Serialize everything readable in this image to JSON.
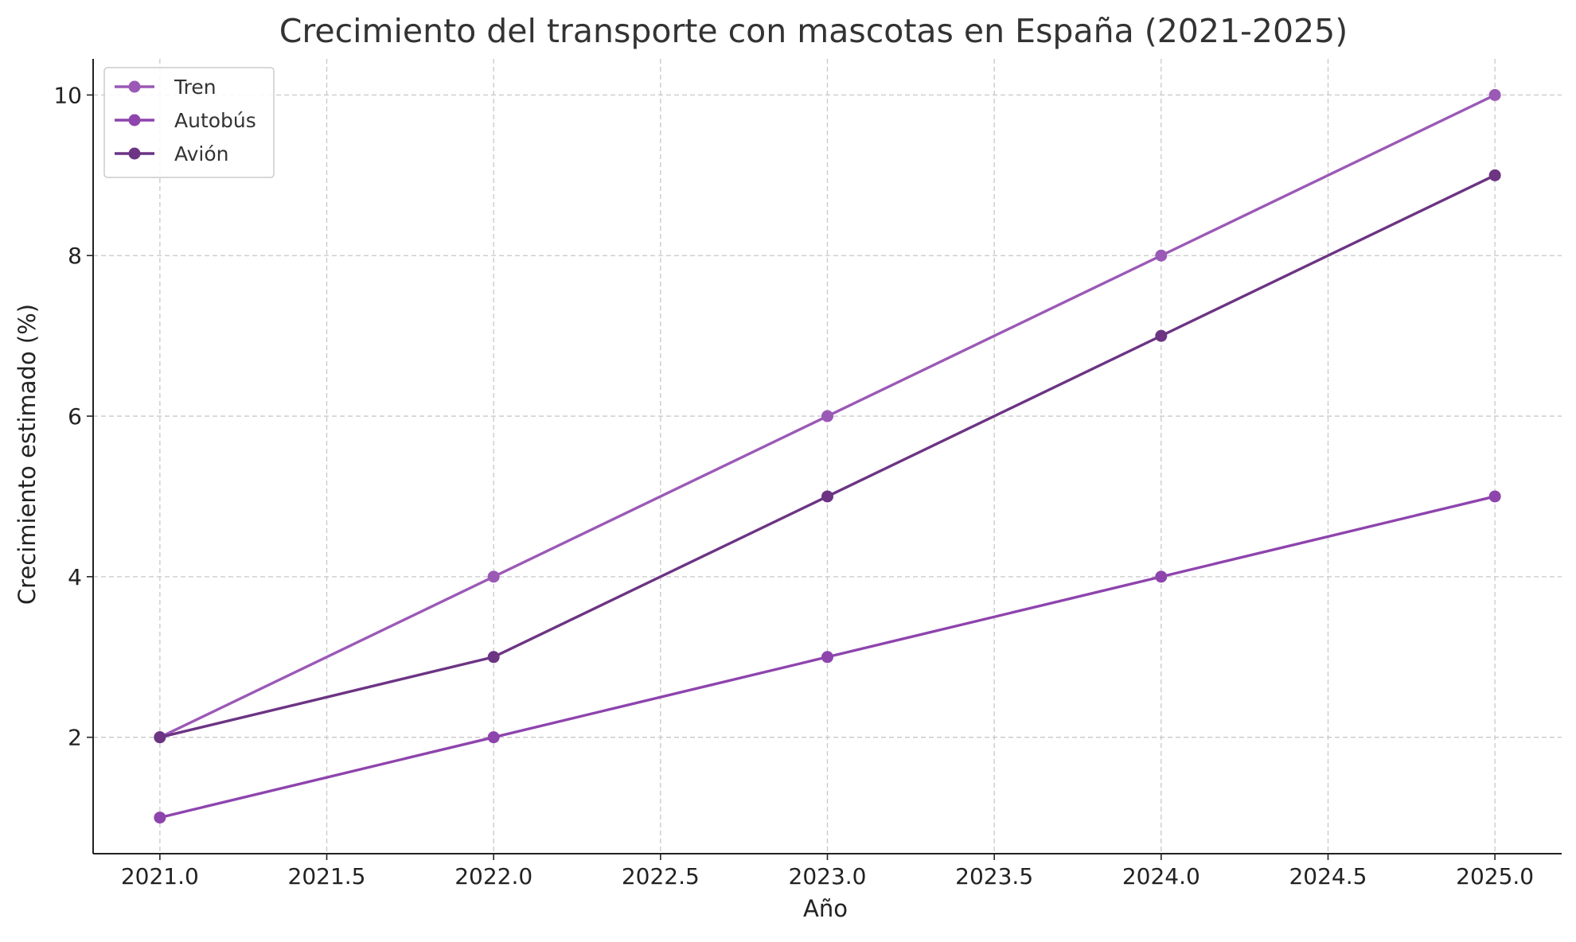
{
  "chart_data": {
    "type": "line",
    "title": "Crecimiento del transporte con mascotas en España (2021-2025)",
    "xlabel": "Año",
    "ylabel": "Crecimiento estimado (%)",
    "x": [
      2021,
      2022,
      2023,
      2024,
      2025
    ],
    "xlim": [
      2020.8,
      2025.2
    ],
    "ylim": [
      0.55,
      10.45
    ],
    "xticks": [
      "2021.0",
      "2021.5",
      "2022.0",
      "2022.5",
      "2023.0",
      "2023.5",
      "2024.0",
      "2024.5",
      "2025.0"
    ],
    "xtick_values": [
      2021.0,
      2021.5,
      2022.0,
      2022.5,
      2023.0,
      2023.5,
      2024.0,
      2024.5,
      2025.0
    ],
    "yticks": [
      "2",
      "4",
      "6",
      "8",
      "10"
    ],
    "ytick_values": [
      2,
      4,
      6,
      8,
      10
    ],
    "grid": true,
    "legend_position": "top-left",
    "series": [
      {
        "name": "Tren",
        "values": [
          2,
          4,
          6,
          8,
          10
        ],
        "color": "#9b59b6"
      },
      {
        "name": "Autobús",
        "values": [
          1,
          2,
          3,
          4,
          5
        ],
        "color": "#8e44ad"
      },
      {
        "name": "Avión",
        "values": [
          2,
          3,
          5,
          7,
          9
        ],
        "color": "#6c3483"
      }
    ]
  }
}
